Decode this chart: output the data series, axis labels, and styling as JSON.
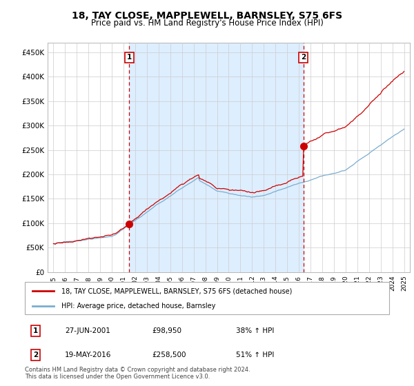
{
  "title": "18, TAY CLOSE, MAPPLEWELL, BARNSLEY, S75 6FS",
  "subtitle": "Price paid vs. HM Land Registry's House Price Index (HPI)",
  "title_fontsize": 10,
  "subtitle_fontsize": 8.5,
  "ytick_values": [
    0,
    50000,
    100000,
    150000,
    200000,
    250000,
    300000,
    350000,
    400000,
    450000
  ],
  "ylim": [
    0,
    470000
  ],
  "xlim_start": 1994.5,
  "xlim_end": 2025.5,
  "purchase1_date": 2001.49,
  "purchase1_price": 98950,
  "purchase2_date": 2016.38,
  "purchase2_price": 258500,
  "red_line_color": "#cc0000",
  "blue_line_color": "#7aadcf",
  "shade_color": "#ddeeff",
  "dashed_vline_color": "#cc0000",
  "marker_color": "#cc0000",
  "grid_color": "#cccccc",
  "background_color": "#ffffff",
  "legend_label1": "18, TAY CLOSE, MAPPLEWELL, BARNSLEY, S75 6FS (detached house)",
  "legend_label2": "HPI: Average price, detached house, Barnsley",
  "annotation1_label": "1",
  "annotation1_date_str": "27-JUN-2001",
  "annotation1_price_str": "£98,950",
  "annotation1_hpi_str": "38% ↑ HPI",
  "annotation2_label": "2",
  "annotation2_date_str": "19-MAY-2016",
  "annotation2_price_str": "£258,500",
  "annotation2_hpi_str": "51% ↑ HPI",
  "footer_text": "Contains HM Land Registry data © Crown copyright and database right 2024.\nThis data is licensed under the Open Government Licence v3.0.",
  "xtick_years": [
    1995,
    1996,
    1997,
    1998,
    1999,
    2000,
    2001,
    2002,
    2003,
    2004,
    2005,
    2006,
    2007,
    2008,
    2009,
    2010,
    2011,
    2012,
    2013,
    2014,
    2015,
    2016,
    2017,
    2018,
    2019,
    2020,
    2021,
    2022,
    2023,
    2024,
    2025
  ]
}
